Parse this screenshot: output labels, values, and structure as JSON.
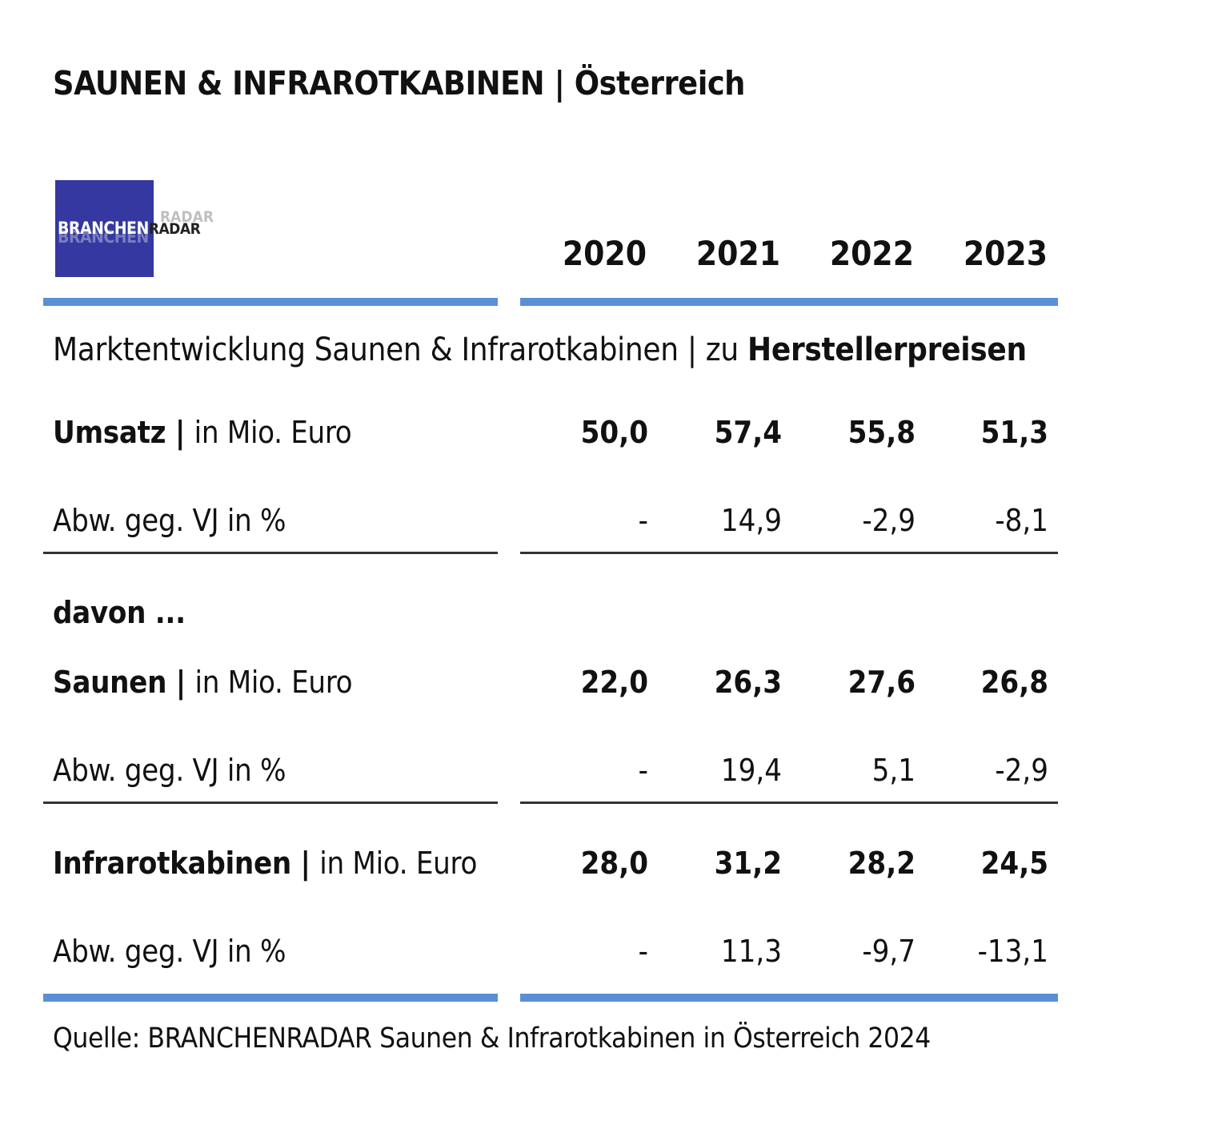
{
  "chart_data": {
    "type": "table",
    "title": "SAUNEN & INFRAROTKABINEN",
    "title_suffix": "Österreich",
    "logo": {
      "text_main": "BRANCHEN",
      "text_accent": "RADAR",
      "color": "#3438a0"
    },
    "subtitle_plain": "Marktentwicklung Saunen & Infrarotkabinen | zu ",
    "subtitle_bold": "Herstellerpreisen",
    "columns": [
      "2020",
      "2021",
      "2022",
      "2023"
    ],
    "rows": [
      {
        "label_bold": "Umsatz",
        "label_rest": "in Mio. Euro",
        "values": [
          "50,0",
          "57,4",
          "55,8",
          "51,3"
        ],
        "bold": true
      },
      {
        "label": "Abw. geg. VJ in %",
        "values": [
          "-",
          "14,9",
          "-2,9",
          "-8,1"
        ],
        "bold": false
      },
      {
        "label_bold": "Saunen",
        "label_rest": "in Mio. Euro",
        "values": [
          "22,0",
          "26,3",
          "27,6",
          "26,8"
        ],
        "bold": true
      },
      {
        "label": "Abw. geg. VJ in %",
        "values": [
          "-",
          "19,4",
          "5,1",
          "-2,9"
        ],
        "bold": false
      },
      {
        "label_bold": "Infrarotkabinen",
        "label_rest": "in Mio. Euro",
        "values": [
          "28,0",
          "31,2",
          "28,2",
          "24,5"
        ],
        "bold": true
      },
      {
        "label": "Abw. geg. VJ in %",
        "values": [
          "-",
          "11,3",
          "-9,7",
          "-13,1"
        ],
        "bold": false
      }
    ],
    "section_label": "davon ...",
    "source": "Quelle: BRANCHENRADAR Saunen & Infrarotkabinen in Österreich 2024",
    "accent_color": "#5b8fd4"
  }
}
